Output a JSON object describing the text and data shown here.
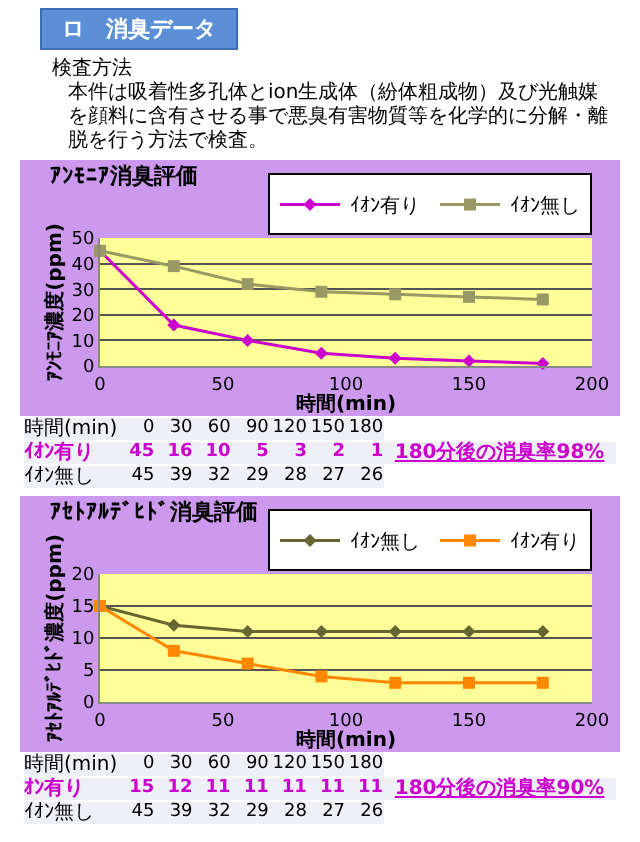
{
  "chart_data": [
    {
      "type": "line",
      "title": "ｱﾝﾓﾆｱ消臭評価",
      "xlabel": "時間(min)",
      "ylabel": "ｱﾝﾓﾆｱ濃度(ppm)",
      "annotations": [
        "ロ　消臭データ",
        "検査方法",
        "本件は吸着性多孔体とion生成体（紛体粗成物）及び光触媒を顔料に含有させる事で悪臭有害物質等を化学的に分解・離脱を行う方法で検査。",
        "時間(min)\t0\t30\t60\t90\t120\t150\t180\t",
        "ｲｵﾝ有り\t45\t16\t10\t5\t3\t2\t1\t180分後の消臭率98%",
        "ｲｵﾝ無し\t45\t39\t32\t29\t28\t27\t26\t"
      ],
      "x": [
        0,
        30,
        60,
        90,
        120,
        150,
        180
      ],
      "series": [
        {
          "name": "ｲｵﾝ有り",
          "color": "#cc00cc",
          "marker": "diamond",
          "values": [
            45,
            16,
            10,
            5,
            3,
            2,
            1
          ]
        },
        {
          "name": "ｲｵﾝ無し",
          "color": "#999966",
          "marker": "square",
          "values": [
            45,
            39,
            32,
            29,
            28,
            27,
            26
          ]
        }
      ],
      "xlim": [
        0,
        200
      ],
      "xticks": [
        0,
        50,
        100,
        150,
        200
      ],
      "ylim": [
        0,
        50
      ],
      "yticks": [
        0,
        10,
        20,
        30,
        40,
        50
      ],
      "grid": "y",
      "legend": "top right"
    },
    {
      "type": "line",
      "title": "ｱｾﾄｱﾙﾃﾞﾋﾄﾞ消臭評価",
      "xlabel": "時間(min)",
      "ylabel": "ｱｾﾄｱﾙﾃﾞﾋﾄﾞ濃度(ppm)",
      "annotations": [
        "時間(min)\t0\t30\t60\t90\t120\t150\t180\t",
        "ｵﾝ有り\t15\t12\t11\t11\t11\t11\t11\t180分後の消臭率90%",
        "ｲｵﾝ無し\t45\t39\t32\t29\t28\t27\t26\t"
      ],
      "x": [
        0,
        30,
        60,
        90,
        120,
        150,
        180
      ],
      "series": [
        {
          "name": "ｲｵﾝ無し",
          "color": "#666633",
          "marker": "diamond",
          "values": [
            15,
            12,
            11,
            11,
            11,
            11,
            11
          ]
        },
        {
          "name": "ｲｵﾝ有り",
          "color": "#ff8800",
          "marker": "square",
          "values": [
            15,
            8,
            6,
            4,
            3,
            3,
            3
          ]
        }
      ],
      "xlim": [
        0,
        200
      ],
      "xticks": [
        0,
        50,
        100,
        150,
        200
      ],
      "ylim": [
        0,
        20
      ],
      "yticks": [
        0,
        5,
        10,
        15,
        20
      ],
      "grid": "y",
      "legend": "top right"
    }
  ]
}
